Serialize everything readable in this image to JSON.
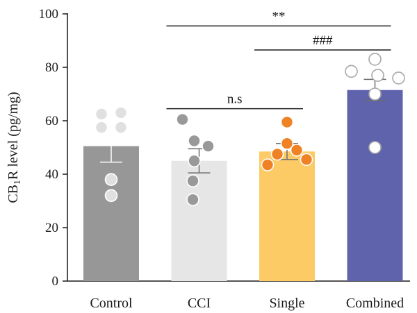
{
  "chart_data": {
    "type": "bar",
    "title": "",
    "xlabel": "",
    "ylabel": {
      "prefix": "CB",
      "sub": "1",
      "suffix": "R level (pg/mg)"
    },
    "ylim": [
      0,
      100
    ],
    "yticks": [
      0,
      20,
      40,
      60,
      80,
      100
    ],
    "categories": [
      "Control",
      "CCI",
      "Single",
      "Combined"
    ],
    "values": [
      50.5,
      45.0,
      48.5,
      71.5
    ],
    "errors": [
      6.0,
      4.5,
      3.0,
      4.0
    ],
    "points": [
      [
        62.5,
        63.0,
        57.5,
        57.5,
        38.0,
        32.0
      ],
      [
        60.5,
        52.5,
        50.5,
        45.0,
        37.5,
        30.5
      ],
      [
        59.5,
        51.5,
        49.0,
        47.5,
        45.5,
        43.5
      ],
      [
        83.0,
        78.5,
        77.0,
        76.0,
        70.0,
        50.0
      ]
    ],
    "bar_colors": [
      "#979797",
      "#e6e6e6",
      "#fccb66",
      "#5e63ac"
    ],
    "point_fills": [
      "#e0e0e0",
      "#999999",
      "#f08226",
      "#ffffff"
    ],
    "point_strokes": [
      "#ffffff",
      "#ffffff",
      "#ffffff",
      "#a8a8a8"
    ],
    "significance": [
      {
        "from": 1,
        "to": 3,
        "label": "**",
        "y": 95.5
      },
      {
        "from": 2,
        "to": 3,
        "label": "###",
        "y": 86.5
      },
      {
        "from": 1,
        "to": 2,
        "label": "n.s",
        "y": 64.5
      }
    ],
    "grid": false,
    "legend": "none"
  }
}
